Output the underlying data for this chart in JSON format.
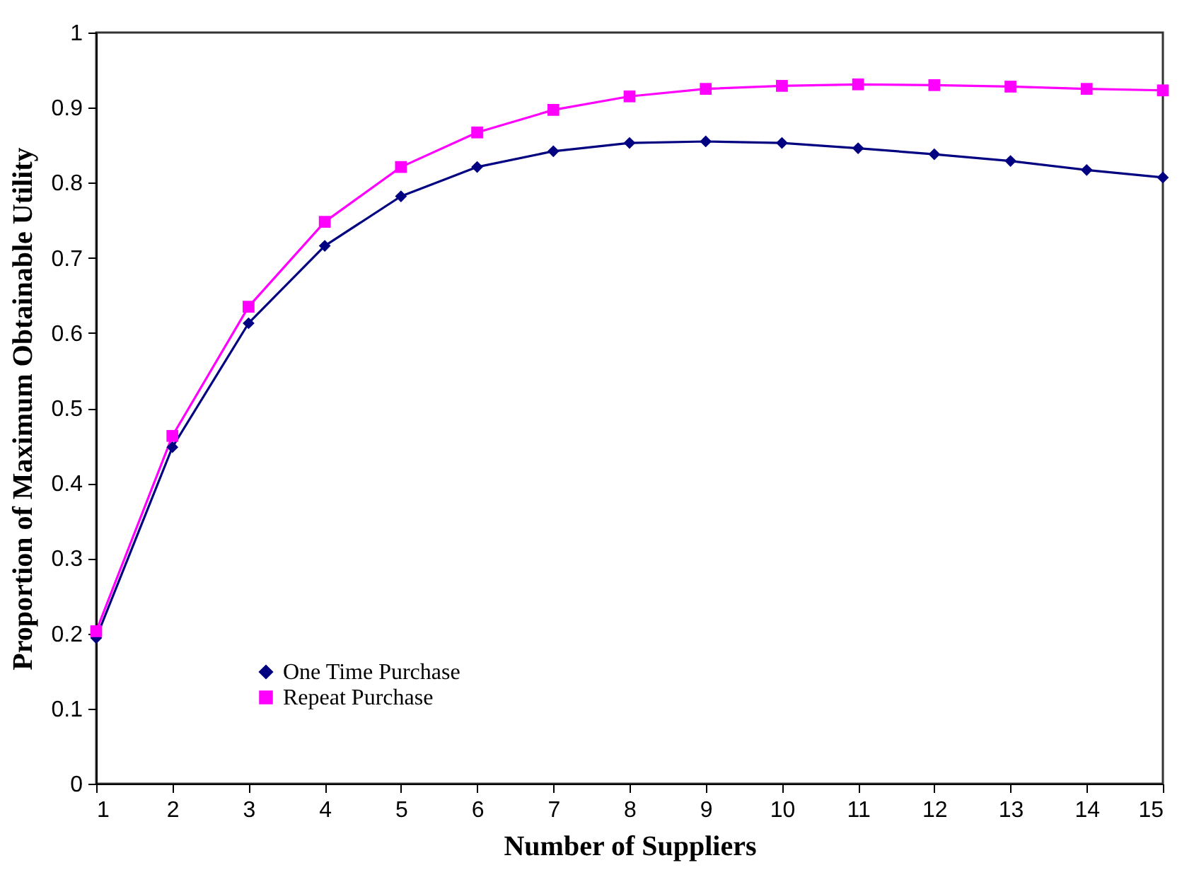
{
  "chart_data": {
    "type": "line",
    "xlabel": "Number of Suppliers",
    "ylabel": "Proportion of Maximum Obtainable Utility",
    "x": [
      1,
      2,
      3,
      4,
      5,
      6,
      7,
      8,
      9,
      10,
      11,
      12,
      13,
      14,
      15
    ],
    "series": [
      {
        "name": "One Time Purchase",
        "color": "#000080",
        "marker": "diamond",
        "values": [
          0.194,
          0.448,
          0.613,
          0.716,
          0.782,
          0.821,
          0.842,
          0.853,
          0.855,
          0.853,
          0.846,
          0.838,
          0.829,
          0.817,
          0.807
        ]
      },
      {
        "name": "Repeat Purchase",
        "color": "#ff00ff",
        "marker": "square",
        "values": [
          0.203,
          0.463,
          0.635,
          0.748,
          0.821,
          0.867,
          0.897,
          0.915,
          0.925,
          0.929,
          0.931,
          0.93,
          0.928,
          0.925,
          0.923
        ]
      }
    ],
    "xlim": [
      1,
      15
    ],
    "xticks": [
      1,
      2,
      3,
      4,
      5,
      6,
      7,
      8,
      9,
      10,
      11,
      12,
      13,
      14,
      15
    ],
    "ylim": [
      0,
      1
    ],
    "yticks": [
      0,
      0.1,
      0.2,
      0.3,
      0.4,
      0.5,
      0.6,
      0.7,
      0.8,
      0.9,
      1
    ],
    "grid": false,
    "legend": "bottom left"
  }
}
